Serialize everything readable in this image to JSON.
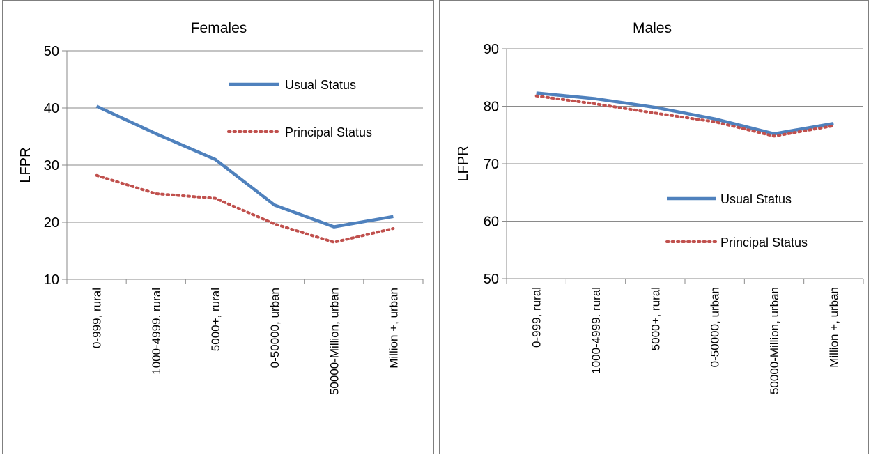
{
  "chart_data": [
    {
      "type": "line",
      "title": "Females",
      "xlabel": "",
      "ylabel": "LFPR",
      "ylim": [
        10,
        50
      ],
      "yticks": [
        "10",
        "20",
        "30",
        "40",
        "50"
      ],
      "grid": true,
      "categories": [
        "0-999, rural",
        "1000-4999. rural",
        "5000+, rural",
        "0-50000, urban",
        "50000-Million, urban",
        "Million +, urban"
      ],
      "series": [
        {
          "name": "Usual Status",
          "color": "#4f81bd",
          "style": "solid",
          "values": [
            40.3,
            35.5,
            31.0,
            23.0,
            19.2,
            21.0
          ]
        },
        {
          "name": "Principal Status",
          "color": "#c0504d",
          "style": "dotted",
          "values": [
            28.2,
            25.0,
            24.2,
            19.7,
            16.5,
            18.9
          ]
        }
      ],
      "legend": "upper-right inside plot"
    },
    {
      "type": "line",
      "title": "Males",
      "xlabel": "",
      "ylabel": "LFPR",
      "ylim": [
        50,
        90
      ],
      "yticks": [
        "50",
        "60",
        "70",
        "80",
        "90"
      ],
      "grid": true,
      "categories": [
        "0-999, rural",
        "1000-4999. rural",
        "5000+, rural",
        "0-50000, urban",
        "50000-Million, urban",
        "Million +, urban"
      ],
      "series": [
        {
          "name": "Usual Status",
          "color": "#4f81bd",
          "style": "solid",
          "values": [
            82.3,
            81.3,
            79.8,
            77.8,
            75.2,
            77.0
          ]
        },
        {
          "name": "Principal Status",
          "color": "#c0504d",
          "style": "dotted",
          "values": [
            81.8,
            80.4,
            78.8,
            77.3,
            74.8,
            76.6
          ]
        }
      ],
      "legend": "center-right inside plot"
    }
  ]
}
